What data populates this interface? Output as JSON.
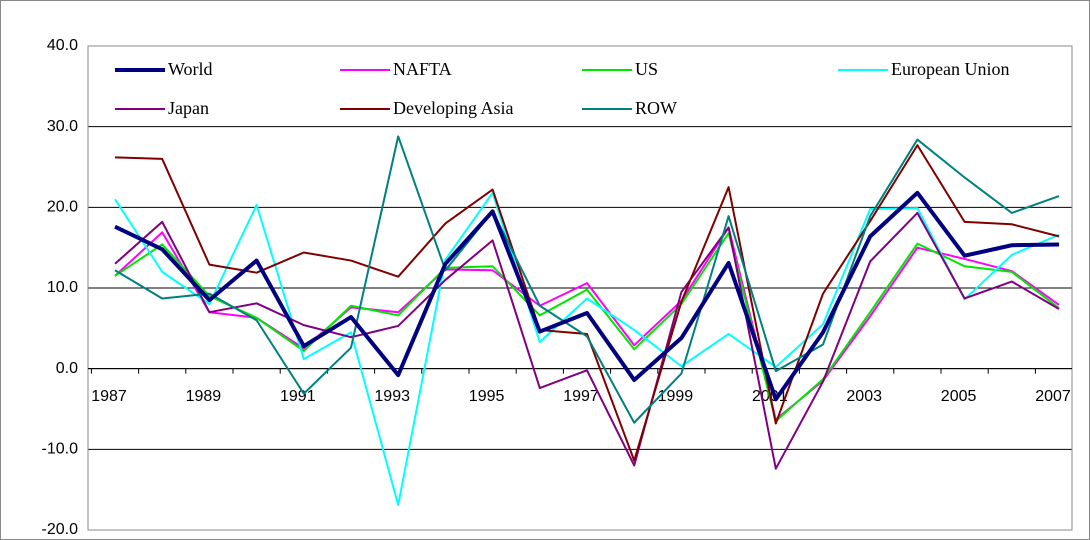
{
  "chart_data": {
    "type": "line",
    "categories": [
      "1987",
      null,
      "1989",
      null,
      "1991",
      null,
      "1993",
      null,
      "1995",
      null,
      "1997",
      null,
      "1999",
      null,
      "2001",
      null,
      "2003",
      null,
      "2005",
      null,
      "2007"
    ],
    "ylim": [
      -20,
      40
    ],
    "yticks": [
      {
        "value": -20,
        "label": "-20.0"
      },
      {
        "value": -10,
        "label": "-10.0"
      },
      {
        "value": 0,
        "label": "0.0"
      },
      {
        "value": 10,
        "label": "10.0"
      },
      {
        "value": 20,
        "label": "20.0"
      },
      {
        "value": 30,
        "label": "30.0"
      },
      {
        "value": 40,
        "label": "40.0"
      }
    ],
    "grid": true,
    "series": [
      {
        "name": "World",
        "color": "#000080",
        "values": [
          17.6,
          14.8,
          8.5,
          13.4,
          2.8,
          6.4,
          -0.8,
          13.0,
          19.5,
          4.6,
          6.9,
          -1.4,
          3.8,
          13.1,
          -3.8,
          4.5,
          16.4,
          21.8,
          14.0,
          15.3,
          15.4
        ]
      },
      {
        "name": "NAFTA",
        "color": "#ff00ff",
        "values": [
          11.5,
          16.9,
          7.0,
          6.3,
          2.5,
          7.6,
          7.0,
          12.3,
          12.2,
          7.8,
          10.6,
          2.9,
          8.4,
          17.5,
          -6.3,
          -1.5,
          6.5,
          15.0,
          13.6,
          12.1,
          7.9
        ]
      },
      {
        "name": "US",
        "color": "#00e600",
        "values": [
          11.5,
          15.4,
          9.0,
          6.3,
          2.2,
          7.8,
          6.6,
          12.5,
          12.7,
          6.6,
          9.8,
          2.4,
          8.0,
          16.8,
          -6.5,
          -1.3,
          7.0,
          15.5,
          12.7,
          12.0,
          7.5
        ]
      },
      {
        "name": "European Union",
        "color": "#00ffff",
        "values": [
          21.0,
          12.0,
          8.0,
          20.3,
          1.2,
          4.5,
          -16.9,
          13.5,
          21.8,
          3.3,
          8.7,
          4.8,
          0.3,
          4.3,
          0.2,
          5.5,
          19.8,
          19.9,
          8.6,
          14.1,
          16.6
        ]
      },
      {
        "name": "Japan",
        "color": "#800080",
        "values": [
          13.0,
          18.2,
          7.0,
          8.1,
          5.4,
          3.9,
          5.3,
          11.0,
          15.9,
          -2.4,
          -0.2,
          -12.0,
          9.5,
          17.5,
          -12.4,
          -1.6,
          13.3,
          19.3,
          8.7,
          10.8,
          7.4
        ]
      },
      {
        "name": "Developing Asia",
        "color": "#800000",
        "values": [
          26.2,
          26.0,
          12.9,
          11.9,
          14.4,
          13.4,
          11.4,
          18.0,
          22.2,
          4.8,
          4.3,
          -11.4,
          8.3,
          22.5,
          -6.8,
          9.3,
          18.3,
          27.7,
          18.2,
          17.9,
          16.4
        ]
      },
      {
        "name": "ROW",
        "color": "#008080",
        "values": [
          12.2,
          8.7,
          9.3,
          6.0,
          -3.1,
          2.6,
          28.8,
          12.2,
          19.5,
          7.8,
          4.0,
          -6.7,
          -0.6,
          18.9,
          -0.3,
          3.0,
          18.9,
          28.4,
          23.7,
          19.3,
          21.4
        ]
      }
    ]
  }
}
